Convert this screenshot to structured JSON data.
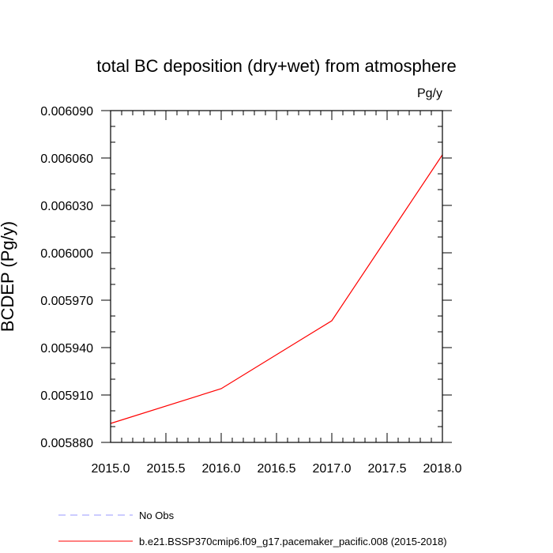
{
  "chart_data": {
    "type": "line",
    "title": "total BC deposition (dry+wet) from atmosphere",
    "units": "Pg/y",
    "ylabel": "BCDEP  (Pg/y)",
    "xlabel": "",
    "xlim": [
      2015.0,
      2018.0
    ],
    "ylim": [
      0.00588,
      0.00609
    ],
    "x_ticks": [
      2015.0,
      2015.5,
      2016.0,
      2016.5,
      2017.0,
      2017.5,
      2018.0
    ],
    "x_tick_labels": [
      "2015.0",
      "2015.5",
      "2016.0",
      "2016.5",
      "2017.0",
      "2017.5",
      "2018.0"
    ],
    "y_ticks": [
      0.00588,
      0.00591,
      0.00594,
      0.00597,
      0.006,
      0.00603,
      0.00606,
      0.00609
    ],
    "y_tick_labels": [
      "0.005880",
      "0.005910",
      "0.005940",
      "0.005970",
      "0.006000",
      "0.006030",
      "0.006060",
      "0.006090"
    ],
    "grid": false,
    "legend_position": "bottom",
    "series": [
      {
        "name": "No Obs",
        "color": "#9999ff",
        "dash": "dashed",
        "x": [],
        "y": []
      },
      {
        "name": "b.e21.BSSP370cmip6.f09_g17.pacemaker_pacific.008 (2015-2018)",
        "color": "#ff0000",
        "dash": "solid",
        "x": [
          2015,
          2016,
          2017,
          2018
        ],
        "y": [
          0.005892,
          0.005914,
          0.005957,
          0.006062
        ]
      }
    ]
  }
}
